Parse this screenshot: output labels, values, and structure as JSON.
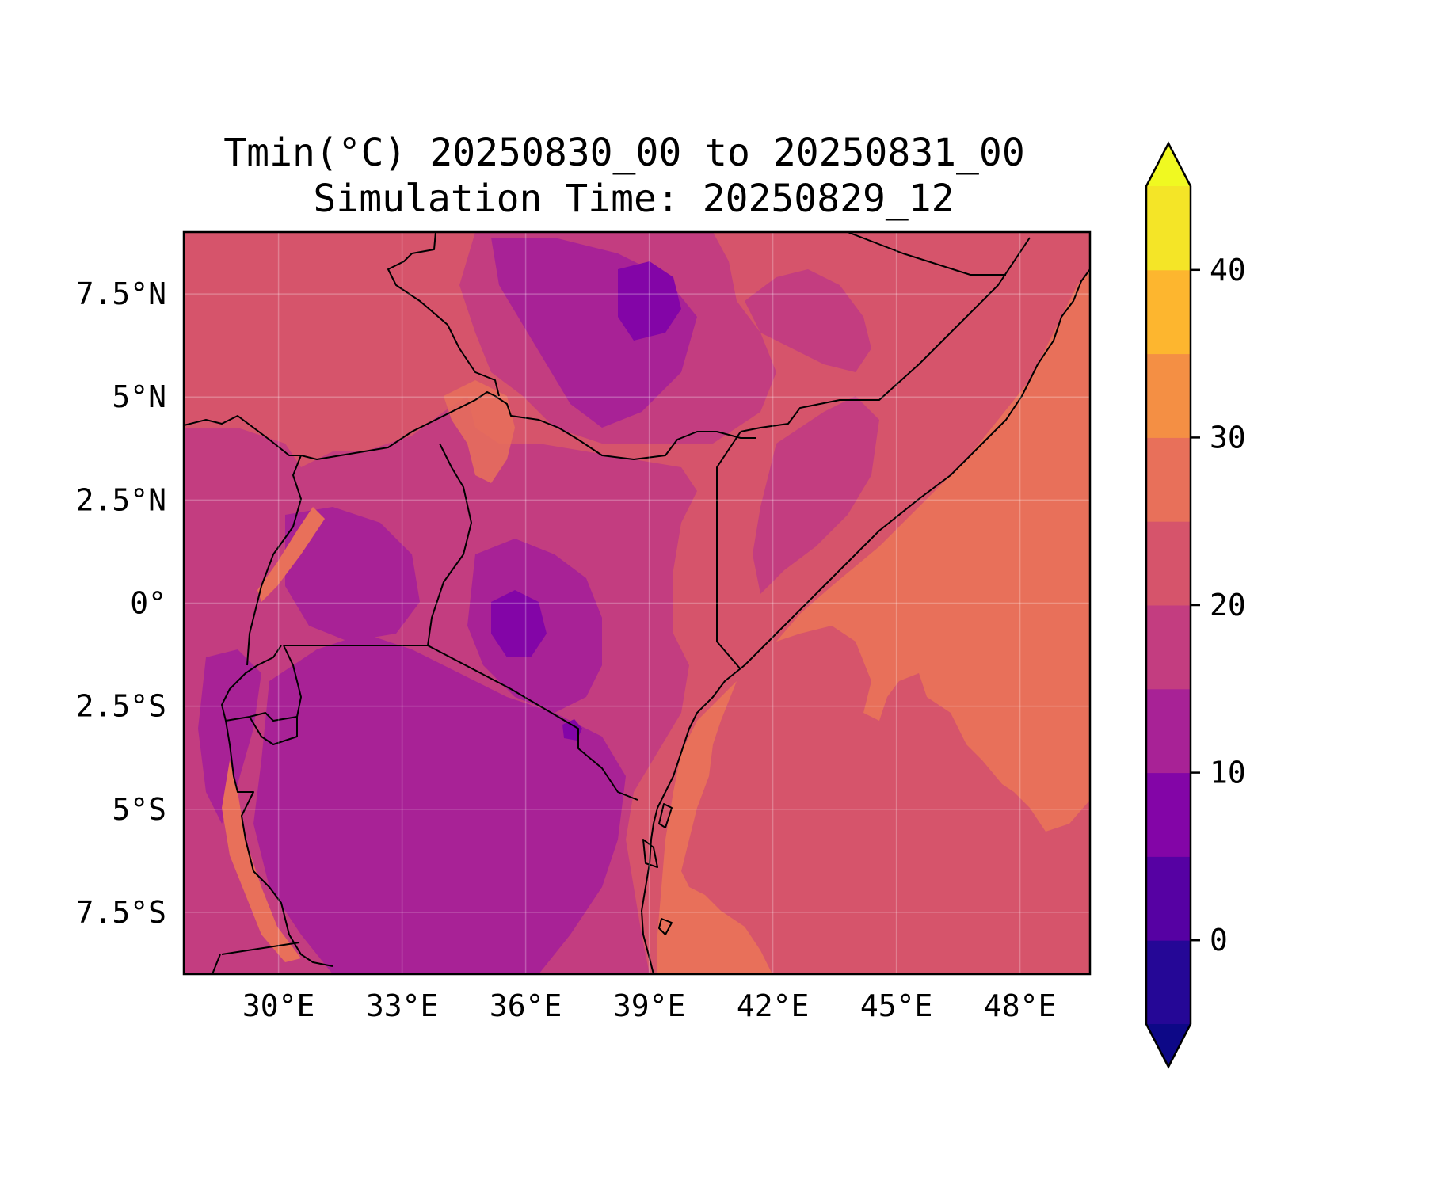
{
  "title": {
    "line1": "Tmin(°C) 20250830_00 to 20250831_00",
    "line2": "Simulation Time: 20250829_12"
  },
  "map": {
    "lon_range": [
      27.7,
      49.7
    ],
    "lat_range": [
      -9.0,
      9.0
    ],
    "gridlines": true,
    "lon_ticks": [
      {
        "value": 30,
        "label": "30°E"
      },
      {
        "value": 33,
        "label": "33°E"
      },
      {
        "value": 36,
        "label": "36°E"
      },
      {
        "value": 39,
        "label": "39°E"
      },
      {
        "value": 42,
        "label": "42°E"
      },
      {
        "value": 45,
        "label": "45°E"
      },
      {
        "value": 48,
        "label": "48°E"
      }
    ],
    "lat_ticks": [
      {
        "value": 7.5,
        "label": "7.5°N"
      },
      {
        "value": 5,
        "label": "5°N"
      },
      {
        "value": 2.5,
        "label": "2.5°N"
      },
      {
        "value": 0,
        "label": "0°"
      },
      {
        "value": -2.5,
        "label": "2.5°S"
      },
      {
        "value": -5,
        "label": "5°S"
      },
      {
        "value": -7.5,
        "label": "7.5°S"
      }
    ],
    "background_color": "#d6546b"
  },
  "colorbar": {
    "min": -5,
    "max": 45,
    "extend": "both",
    "levels": [
      -5,
      0,
      5,
      10,
      15,
      20,
      25,
      30,
      35,
      40,
      45
    ],
    "colors": [
      "#250796",
      "#5601a3",
      "#8305a7",
      "#a82296",
      "#c33d80",
      "#d6546b",
      "#e8705a",
      "#f48f44",
      "#fdb62f",
      "#f4e527"
    ],
    "under_color": "#0d0887",
    "over_color": "#f0f921",
    "ticks": [
      {
        "value": 0,
        "label": "0"
      },
      {
        "value": 10,
        "label": "10"
      },
      {
        "value": 20,
        "label": "20"
      },
      {
        "value": 30,
        "label": "30"
      },
      {
        "value": 40,
        "label": "40"
      }
    ]
  }
}
